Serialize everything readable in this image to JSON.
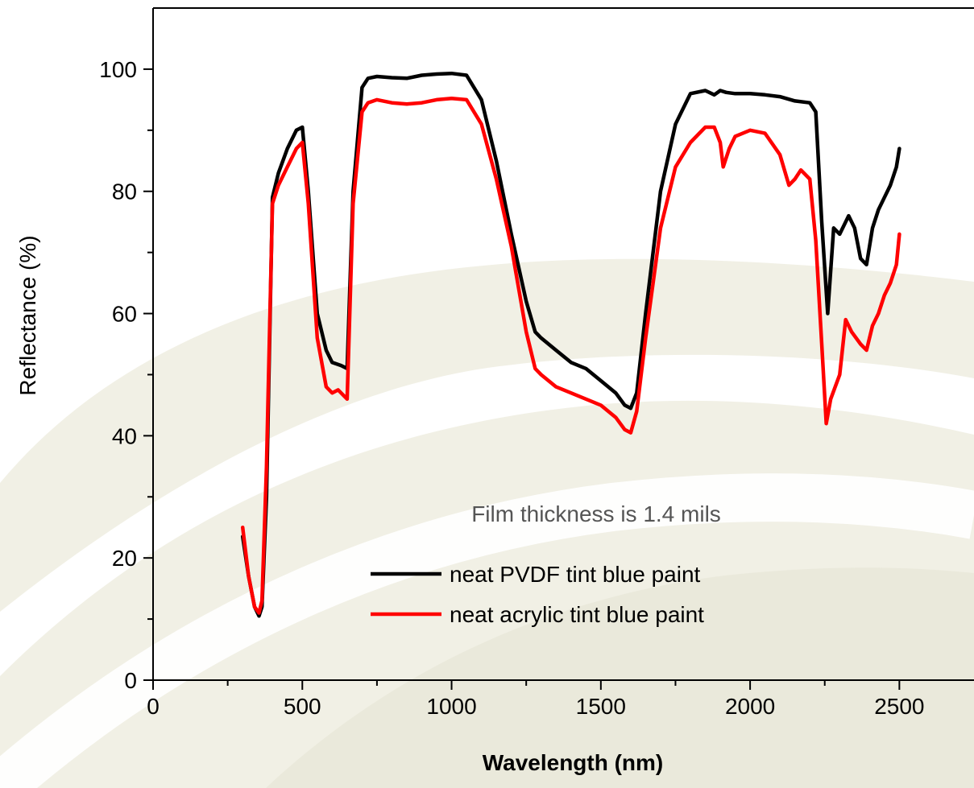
{
  "chart_data": {
    "type": "line",
    "title": "",
    "xlabel": "Wavelength (nm)",
    "ylabel": "Reflectance (%)",
    "xlim": [
      0,
      2750
    ],
    "ylim": [
      0,
      110
    ],
    "x_ticks": [
      0,
      500,
      1000,
      1500,
      2000,
      2500
    ],
    "x_tick_labels": [
      "0",
      "500",
      "1000",
      "1500",
      "2000",
      "2500"
    ],
    "y_ticks": [
      0,
      20,
      40,
      60,
      80,
      100
    ],
    "y_tick_labels": [
      "0",
      "20",
      "40",
      "60",
      "80",
      "100"
    ],
    "grid": false,
    "legend_position": "lower-center",
    "annotation": "Film thickness is 1.4 mils",
    "series": [
      {
        "name": "neat PVDF tint blue paint",
        "color": "#000000",
        "x": [
          300,
          320,
          340,
          355,
          365,
          380,
          400,
          420,
          450,
          480,
          500,
          520,
          550,
          580,
          600,
          630,
          650,
          670,
          700,
          720,
          750,
          800,
          850,
          900,
          950,
          1000,
          1050,
          1100,
          1150,
          1200,
          1250,
          1280,
          1300,
          1350,
          1400,
          1450,
          1500,
          1550,
          1580,
          1600,
          1620,
          1650,
          1700,
          1750,
          1800,
          1850,
          1880,
          1900,
          1920,
          1950,
          2000,
          2050,
          2100,
          2150,
          2200,
          2220,
          2240,
          2260,
          2280,
          2300,
          2320,
          2330,
          2350,
          2370,
          2390,
          2410,
          2430,
          2450,
          2470,
          2490,
          2500
        ],
        "y": [
          23.5,
          17,
          12,
          10.5,
          12,
          30,
          79,
          83,
          87,
          90,
          90.5,
          80,
          60,
          54,
          52,
          51.5,
          51,
          80,
          97,
          98.5,
          98.8,
          98.6,
          98.5,
          99,
          99.2,
          99.3,
          99,
          95,
          85,
          73,
          62,
          57,
          56,
          54,
          52,
          51,
          49,
          47,
          45,
          44.5,
          47,
          60,
          80,
          91,
          96,
          96.5,
          95.8,
          96.5,
          96.2,
          96,
          96,
          95.8,
          95.5,
          94.8,
          94.5,
          93,
          75,
          60,
          74,
          73,
          75,
          76,
          74,
          69,
          68,
          74,
          77,
          79,
          81,
          84,
          87
        ]
      },
      {
        "name": "neat acrylic tint blue paint",
        "color": "#ff0000",
        "x": [
          300,
          320,
          340,
          355,
          365,
          380,
          400,
          420,
          450,
          480,
          500,
          520,
          550,
          580,
          600,
          620,
          650,
          670,
          700,
          720,
          750,
          800,
          850,
          900,
          950,
          1000,
          1050,
          1100,
          1150,
          1200,
          1250,
          1280,
          1300,
          1350,
          1400,
          1450,
          1500,
          1550,
          1580,
          1600,
          1620,
          1650,
          1700,
          1750,
          1800,
          1850,
          1880,
          1900,
          1910,
          1930,
          1950,
          2000,
          2050,
          2100,
          2130,
          2150,
          2170,
          2200,
          2220,
          2240,
          2255,
          2270,
          2300,
          2320,
          2340,
          2370,
          2390,
          2410,
          2430,
          2450,
          2470,
          2490,
          2500
        ],
        "y": [
          25,
          17,
          12,
          11,
          13,
          35,
          78,
          81,
          84,
          87,
          88,
          78,
          56,
          48,
          47,
          47.5,
          46,
          78,
          93,
          94.5,
          95,
          94.5,
          94.3,
          94.5,
          95,
          95.2,
          95,
          91,
          82,
          71,
          57,
          51,
          50,
          48,
          47,
          46,
          45,
          43,
          41,
          40.5,
          44,
          56,
          74,
          84,
          88,
          90.5,
          90.5,
          88,
          84,
          87,
          89,
          90,
          89.5,
          86,
          81,
          82,
          83.5,
          82,
          72,
          55,
          42,
          46,
          50,
          59,
          57,
          55,
          54,
          58,
          60,
          63,
          65,
          68,
          73
        ]
      }
    ]
  }
}
